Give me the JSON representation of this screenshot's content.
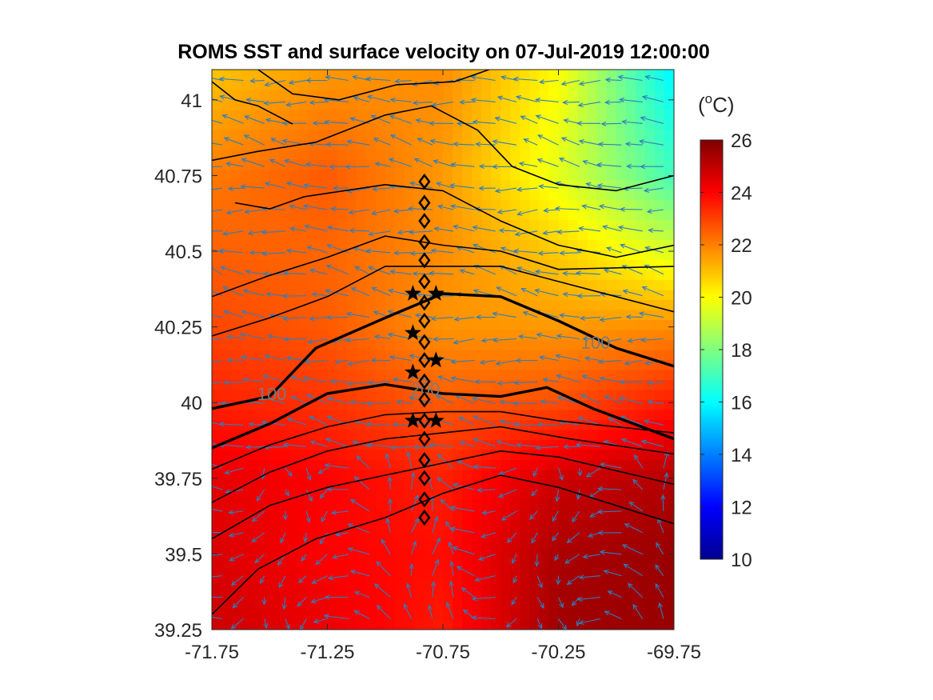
{
  "chart_data": {
    "type": "heatmap",
    "title": "ROMS SST and surface velocity on 07-Jul-2019 12:00:00",
    "xlim": [
      -71.75,
      -69.75
    ],
    "ylim": [
      39.25,
      41.1
    ],
    "x_ticks": [
      -71.75,
      -71.25,
      -70.75,
      -70.25,
      -69.75
    ],
    "x_tick_labels": [
      "-71.75",
      "-71.25",
      "-70.75",
      "-70.25",
      "-69.75"
    ],
    "y_ticks": [
      39.25,
      39.5,
      39.75,
      40,
      40.25,
      40.5,
      40.75,
      41
    ],
    "y_tick_labels": [
      "39.25",
      "39.5",
      "39.75",
      "40",
      "40.25",
      "40.5",
      "40.75",
      "41"
    ],
    "colorbar": {
      "label": "(oC)",
      "label_base": "(",
      "label_sup": "o",
      "label_tail": "C)",
      "clim": [
        10,
        26
      ],
      "ticks": [
        10,
        12,
        14,
        16,
        18,
        20,
        22,
        24,
        26
      ],
      "tick_labels": [
        "10",
        "12",
        "14",
        "16",
        "18",
        "20",
        "22",
        "24",
        "26"
      ],
      "colormap": "jet"
    },
    "sst_field": {
      "description_grid": "approximate SST in degC",
      "lon": [
        -71.75,
        -71.25,
        -70.75,
        -70.25,
        -69.75
      ],
      "lat": [
        39.25,
        39.5,
        39.75,
        40.0,
        40.25,
        40.5,
        40.75,
        41.1
      ],
      "values": [
        [
          24.8,
          24.3,
          23.6,
          25.5,
          25.6
        ],
        [
          24.6,
          24.0,
          23.8,
          25.3,
          25.6
        ],
        [
          24.4,
          24.0,
          23.5,
          24.8,
          25.2
        ],
        [
          23.5,
          23.2,
          22.6,
          22.8,
          23.6
        ],
        [
          22.9,
          22.6,
          21.7,
          21.6,
          21.8
        ],
        [
          22.5,
          22.4,
          21.8,
          20.8,
          19.4
        ],
        [
          22.1,
          22.6,
          21.6,
          19.6,
          17.0
        ],
        [
          20.9,
          21.6,
          21.8,
          20.0,
          15.8
        ]
      ]
    },
    "isobath_labels": [
      "100",
      "200",
      "100"
    ],
    "isobaths": [
      {
        "depth": 100,
        "points": [
          [
            -71.75,
            39.98
          ],
          [
            -71.5,
            40.02
          ],
          [
            -71.3,
            40.18
          ],
          [
            -71.0,
            40.28
          ],
          [
            -70.75,
            40.36
          ],
          [
            -70.5,
            40.35
          ],
          [
            -70.25,
            40.27
          ],
          [
            -70.0,
            40.18
          ],
          [
            -69.75,
            40.12
          ]
        ]
      },
      {
        "depth": 200,
        "points": [
          [
            -71.75,
            39.85
          ],
          [
            -71.5,
            39.93
          ],
          [
            -71.25,
            40.03
          ],
          [
            -71.0,
            40.06
          ],
          [
            -70.75,
            40.03
          ],
          [
            -70.5,
            40.02
          ],
          [
            -70.3,
            40.05
          ],
          [
            -70.1,
            39.98
          ],
          [
            -69.75,
            39.88
          ]
        ]
      },
      {
        "depth": 0,
        "points": [
          [
            -71.75,
            39.67
          ],
          [
            -71.5,
            39.77
          ],
          [
            -71.25,
            39.84
          ],
          [
            -71.0,
            39.88
          ],
          [
            -70.75,
            39.9
          ],
          [
            -70.5,
            39.92
          ],
          [
            -70.2,
            39.88
          ],
          [
            -69.75,
            39.83
          ]
        ]
      },
      {
        "depth": 0,
        "points": [
          [
            -71.75,
            39.78
          ],
          [
            -71.5,
            39.86
          ],
          [
            -71.25,
            39.92
          ],
          [
            -71.0,
            39.96
          ],
          [
            -70.75,
            39.97
          ],
          [
            -70.5,
            39.97
          ],
          [
            -70.25,
            39.94
          ],
          [
            -69.75,
            39.9
          ]
        ]
      },
      {
        "depth": 0,
        "points": [
          [
            -71.75,
            39.55
          ],
          [
            -71.5,
            39.66
          ],
          [
            -71.25,
            39.72
          ],
          [
            -71.0,
            39.76
          ],
          [
            -70.75,
            39.8
          ],
          [
            -70.5,
            39.84
          ],
          [
            -70.25,
            39.82
          ],
          [
            -69.75,
            39.73
          ]
        ]
      },
      {
        "depth": 0,
        "points": [
          [
            -71.75,
            39.3
          ],
          [
            -71.55,
            39.45
          ],
          [
            -71.3,
            39.55
          ],
          [
            -71.0,
            39.62
          ],
          [
            -70.75,
            39.7
          ],
          [
            -70.5,
            39.76
          ],
          [
            -70.25,
            39.72
          ],
          [
            -69.75,
            39.6
          ]
        ]
      },
      {
        "depth": 0,
        "points": [
          [
            -71.75,
            40.22
          ],
          [
            -71.5,
            40.28
          ],
          [
            -71.25,
            40.35
          ],
          [
            -71.0,
            40.45
          ],
          [
            -70.75,
            40.45
          ],
          [
            -70.5,
            40.45
          ],
          [
            -70.25,
            40.4
          ],
          [
            -70.0,
            40.35
          ],
          [
            -69.75,
            40.3
          ]
        ]
      },
      {
        "depth": 0,
        "points": [
          [
            -71.75,
            40.35
          ],
          [
            -71.5,
            40.42
          ],
          [
            -71.25,
            40.48
          ],
          [
            -71.0,
            40.55
          ],
          [
            -70.75,
            40.52
          ],
          [
            -70.5,
            40.5
          ],
          [
            -70.25,
            40.44
          ],
          [
            -69.75,
            40.45
          ]
        ]
      },
      {
        "depth": 0,
        "points": [
          [
            -71.65,
            40.66
          ],
          [
            -71.5,
            40.64
          ],
          [
            -71.35,
            40.68
          ],
          [
            -71.0,
            40.72
          ],
          [
            -70.75,
            40.7
          ],
          [
            -70.5,
            40.6
          ],
          [
            -70.25,
            40.52
          ],
          [
            -70.0,
            40.48
          ],
          [
            -69.75,
            40.52
          ]
        ]
      },
      {
        "depth": 0,
        "points": [
          [
            -71.75,
            40.8
          ],
          [
            -71.55,
            40.83
          ],
          [
            -71.3,
            40.86
          ],
          [
            -71.0,
            40.95
          ],
          [
            -70.8,
            40.98
          ],
          [
            -70.6,
            40.9
          ],
          [
            -70.45,
            40.78
          ],
          [
            -70.25,
            40.72
          ],
          [
            -70.0,
            40.7
          ],
          [
            -69.75,
            40.75
          ]
        ]
      },
      {
        "depth": 0,
        "points": [
          [
            -71.55,
            41.1
          ],
          [
            -71.4,
            41.02
          ],
          [
            -71.2,
            41.0
          ],
          [
            -70.95,
            41.05
          ],
          [
            -70.7,
            41.06
          ],
          [
            -70.55,
            41.1
          ]
        ]
      },
      {
        "depth": 0,
        "points": [
          [
            -71.75,
            41.06
          ],
          [
            -71.65,
            41.0
          ],
          [
            -71.55,
            40.98
          ],
          [
            -71.4,
            40.92
          ]
        ]
      }
    ],
    "stations_diamond": [
      [
        -70.83,
        40.73
      ],
      [
        -70.83,
        40.66
      ],
      [
        -70.83,
        40.6
      ],
      [
        -70.83,
        40.53
      ],
      [
        -70.83,
        40.47
      ],
      [
        -70.83,
        40.4
      ],
      [
        -70.83,
        40.33
      ],
      [
        -70.83,
        40.27
      ],
      [
        -70.83,
        40.2
      ],
      [
        -70.83,
        40.14
      ],
      [
        -70.83,
        40.07
      ],
      [
        -70.83,
        40.01
      ],
      [
        -70.83,
        39.94
      ],
      [
        -70.83,
        39.88
      ],
      [
        -70.83,
        39.81
      ],
      [
        -70.83,
        39.75
      ],
      [
        -70.83,
        39.68
      ],
      [
        -70.83,
        39.62
      ]
    ],
    "stations_star": [
      [
        -70.88,
        40.36
      ],
      [
        -70.78,
        40.36
      ],
      [
        -70.88,
        40.23
      ],
      [
        -70.78,
        40.14
      ],
      [
        -70.88,
        40.1
      ],
      [
        -70.88,
        39.94
      ],
      [
        -70.78,
        39.94
      ]
    ],
    "velocity_arrows_note": "surface velocity field drawn as blue quiver arrows",
    "arrow_color": "#2e7ebc",
    "contour_color": "#000000"
  }
}
